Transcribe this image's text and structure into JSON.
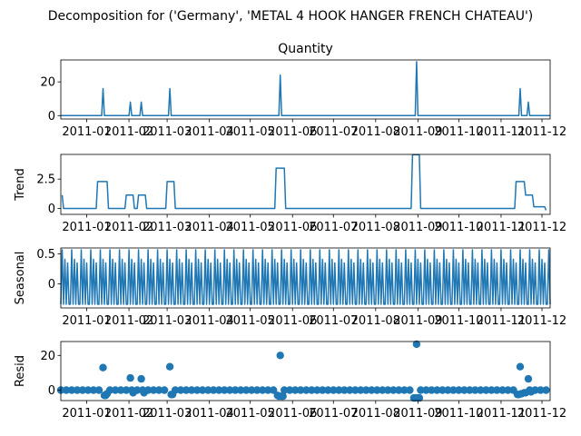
{
  "suptitle": "Decomposition for ('Germany', 'METAL 4 HOOK HANGER FRENCH CHATEAU')",
  "line_color": "#1f77b4",
  "x_ticks": [
    "2011-01",
    "2011-02",
    "2011-03",
    "2011-04",
    "2011-05",
    "2011-06",
    "2011-07",
    "2011-08",
    "2011-09",
    "2011-10",
    "2011-11",
    "2011-12"
  ],
  "chart_data": [
    {
      "type": "line",
      "title": "Quantity",
      "ylabel": "",
      "xlim": [
        "2010-12-13",
        "2011-12-07"
      ],
      "ylim": [
        -2,
        33
      ],
      "yticks": [
        0,
        20
      ],
      "x": [
        "2010-12-13",
        "2011-01-12",
        "2011-01-13",
        "2011-01-14",
        "2011-02-01",
        "2011-02-02",
        "2011-02-03",
        "2011-02-09",
        "2011-02-10",
        "2011-02-11",
        "2011-03-02",
        "2011-03-03",
        "2011-03-04",
        "2011-05-22",
        "2011-05-23",
        "2011-05-24",
        "2011-08-30",
        "2011-08-31",
        "2011-09-01",
        "2011-11-14",
        "2011-11-15",
        "2011-11-16",
        "2011-11-20",
        "2011-11-21",
        "2011-11-22",
        "2011-12-07"
      ],
      "y": [
        0,
        0,
        16,
        0,
        0,
        8,
        0,
        0,
        8,
        0,
        0,
        16,
        0,
        0,
        24,
        0,
        0,
        32,
        0,
        0,
        16,
        0,
        0,
        8,
        0,
        0
      ]
    },
    {
      "type": "line",
      "title": "",
      "ylabel": "Trend",
      "xlim": [
        "2010-12-13",
        "2011-12-07"
      ],
      "ylim": [
        -0.5,
        4.6
      ],
      "yticks": [
        0.0,
        2.5
      ],
      "x": [
        "2010-12-14",
        "2010-12-15",
        "2011-01-08",
        "2011-01-09",
        "2011-01-16",
        "2011-01-17",
        "2011-01-29",
        "2011-01-30",
        "2011-02-04",
        "2011-02-05",
        "2011-02-07",
        "2011-02-08",
        "2011-02-13",
        "2011-02-14",
        "2011-02-28",
        "2011-03-01",
        "2011-03-06",
        "2011-03-07",
        "2011-05-19",
        "2011-05-20",
        "2011-05-26",
        "2011-05-27",
        "2011-08-27",
        "2011-08-28",
        "2011-09-02",
        "2011-09-03",
        "2011-11-11",
        "2011-11-12",
        "2011-11-18",
        "2011-11-19",
        "2011-11-24",
        "2011-11-25",
        "2011-12-03",
        "2011-12-04"
      ],
      "y": [
        1.14,
        0,
        0,
        2.29,
        2.29,
        0,
        0,
        1.14,
        1.14,
        0,
        0,
        1.14,
        1.14,
        0,
        0,
        2.29,
        2.29,
        0,
        0,
        3.43,
        3.43,
        0,
        0,
        4.57,
        4.57,
        0,
        0,
        2.29,
        2.29,
        1.14,
        1.14,
        0.15,
        0.15,
        -0.15
      ]
    },
    {
      "type": "line",
      "title": "",
      "ylabel": "Seasonal",
      "xlim": [
        "2010-12-13",
        "2011-12-07"
      ],
      "ylim": [
        -0.4,
        0.6
      ],
      "yticks": [
        0.0,
        0.5
      ],
      "period_days": 7,
      "start": "2010-12-13",
      "end": "2011-12-07",
      "pattern": [
        -0.34,
        0.57,
        -0.34,
        0.41,
        -0.34,
        0.35,
        -0.34
      ]
    },
    {
      "type": "scatter",
      "title": "",
      "ylabel": "Resid",
      "xlim": [
        "2010-12-13",
        "2011-12-07"
      ],
      "ylim": [
        -6,
        28
      ],
      "yticks": [
        0,
        20
      ],
      "baseline_step_days": 4,
      "start": "2010-12-13",
      "end": "2011-12-07",
      "outliers": [
        {
          "x": "2011-01-13",
          "y": 13
        },
        {
          "x": "2011-01-14",
          "y": -3
        },
        {
          "x": "2011-01-15",
          "y": -3
        },
        {
          "x": "2011-01-16",
          "y": -2
        },
        {
          "x": "2011-02-02",
          "y": 7
        },
        {
          "x": "2011-02-04",
          "y": -1.5
        },
        {
          "x": "2011-02-10",
          "y": 6.5
        },
        {
          "x": "2011-02-12",
          "y": -1.5
        },
        {
          "x": "2011-03-03",
          "y": 13.5
        },
        {
          "x": "2011-03-04",
          "y": -2.5
        },
        {
          "x": "2011-03-05",
          "y": -2.5
        },
        {
          "x": "2011-05-23",
          "y": 20
        },
        {
          "x": "2011-05-21",
          "y": -3
        },
        {
          "x": "2011-05-22",
          "y": -3.5
        },
        {
          "x": "2011-05-24",
          "y": -3.5
        },
        {
          "x": "2011-05-25",
          "y": -3.5
        },
        {
          "x": "2011-08-31",
          "y": 26.5
        },
        {
          "x": "2011-08-29",
          "y": -4.5
        },
        {
          "x": "2011-08-30",
          "y": -4.5
        },
        {
          "x": "2011-09-01",
          "y": -4.5
        },
        {
          "x": "2011-09-02",
          "y": -4.5
        },
        {
          "x": "2011-11-15",
          "y": 13.5
        },
        {
          "x": "2011-11-13",
          "y": -2.5
        },
        {
          "x": "2011-11-14",
          "y": -2.5
        },
        {
          "x": "2011-11-16",
          "y": -2
        },
        {
          "x": "2011-11-21",
          "y": 6.5
        },
        {
          "x": "2011-11-18",
          "y": -1.5
        },
        {
          "x": "2011-11-19",
          "y": -1.5
        },
        {
          "x": "2011-11-23",
          "y": -1
        }
      ]
    }
  ]
}
